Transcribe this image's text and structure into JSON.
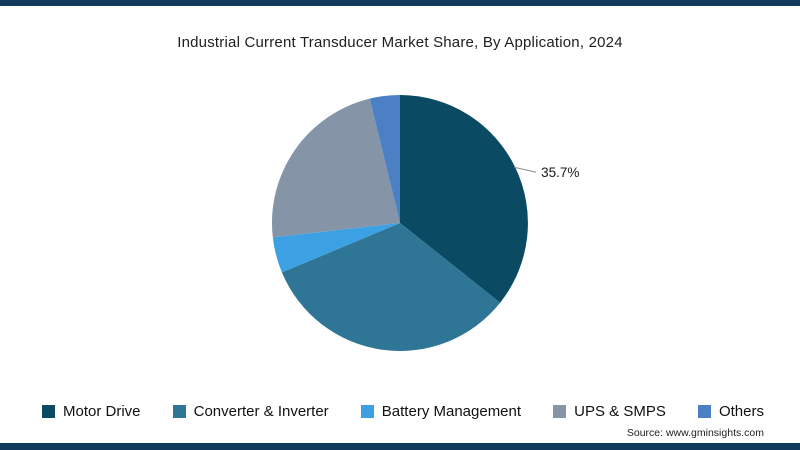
{
  "title": "Industrial Current Transducer Market Share, By Application, 2024",
  "source": "Source: www.gminsights.com",
  "colors": {
    "top_bar": "#113a5c",
    "bottom_bar": "#113a5c",
    "annotation_text": "#1a1a1a",
    "leader_line": "#8c8c8c"
  },
  "chart_data": {
    "type": "pie",
    "title": "Industrial Current Transducer Market Share, By Application, 2024",
    "labels": [
      "Motor Drive",
      "Converter & Inverter",
      "Battery Management",
      "UPS & SMPS",
      "Others"
    ],
    "values": [
      35.7,
      33.0,
      4.5,
      23.0,
      3.8
    ],
    "colors": [
      "#0b4a63",
      "#2e7596",
      "#3ba1e3",
      "#8694a8",
      "#4b80c4"
    ],
    "start_angle_deg": 0,
    "direction": "clockwise",
    "legend_position": "bottom",
    "annotations": [
      {
        "slice": "Motor Drive",
        "text": "35.7%"
      }
    ]
  }
}
